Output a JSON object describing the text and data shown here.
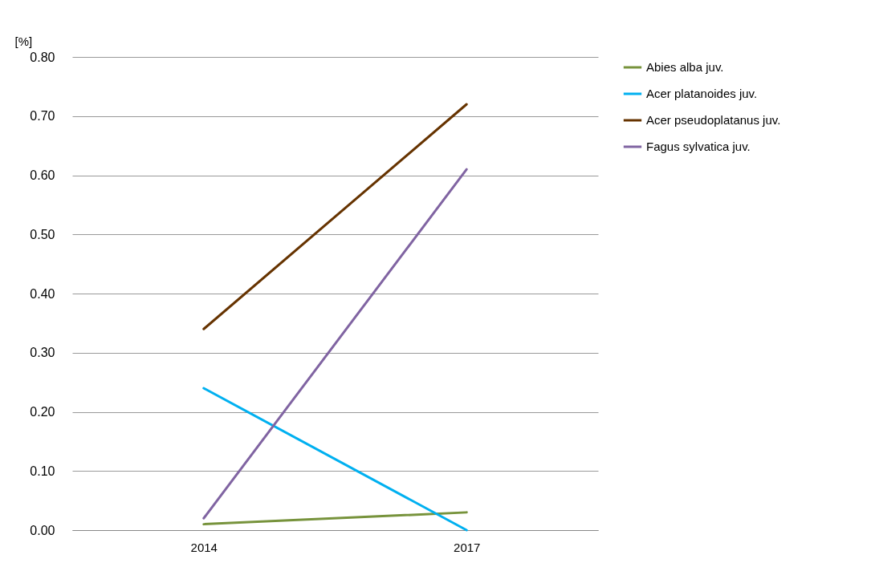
{
  "chart_data": {
    "type": "line",
    "ylabel": "[%]",
    "categories": [
      "2014",
      "2017"
    ],
    "series": [
      {
        "name": "Abies alba juv.",
        "color": "#77933c",
        "values": [
          0.01,
          0.03
        ]
      },
      {
        "name": "Acer platanoides juv.",
        "color": "#00b0f0",
        "values": [
          0.24,
          0.0
        ]
      },
      {
        "name": "Acer pseudoplatanus juv.",
        "color": "#663300",
        "values": [
          0.34,
          0.72
        ]
      },
      {
        "name": "Fagus sylvatica juv.",
        "color": "#8064a2",
        "values": [
          0.02,
          0.61
        ]
      }
    ],
    "ylim": [
      0,
      0.8
    ],
    "yticks": [
      {
        "value": 0,
        "label": "0.00"
      },
      {
        "value": 0.1,
        "label": "0.10"
      },
      {
        "value": 0.2,
        "label": "0.20"
      },
      {
        "value": 0.3,
        "label": "0.30"
      },
      {
        "value": 0.4,
        "label": "0.40"
      },
      {
        "value": 0.5,
        "label": "0.50"
      },
      {
        "value": 0.6,
        "label": "0.60"
      },
      {
        "value": 0.7,
        "label": "0.70"
      },
      {
        "value": 0.8,
        "label": "0.80"
      }
    ],
    "grid": "y",
    "legend": "right",
    "marker": "none",
    "line_style": "solid"
  }
}
